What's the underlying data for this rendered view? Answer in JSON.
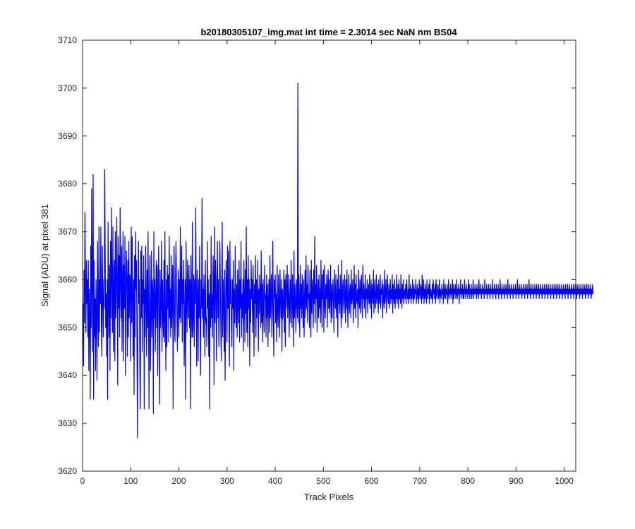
{
  "colors": {
    "line": "#0000ff",
    "axes": "#262626",
    "background": "#ffffff"
  },
  "chart_data": {
    "type": "line",
    "title": "b20180305107_img.mat int time = 2.3014 sec  NaN nm BS04",
    "xlabel": "Track Pixels",
    "ylabel": "Signal (ADU) at pixel 381",
    "xlim": [
      0,
      1024
    ],
    "ylim": [
      3620,
      3710
    ],
    "xticks": [
      0,
      100,
      200,
      300,
      400,
      500,
      600,
      700,
      800,
      900,
      1000
    ],
    "yticks": [
      3620,
      3630,
      3640,
      3650,
      3660,
      3670,
      3680,
      3690,
      3700,
      3710
    ],
    "grid": false,
    "legend": "none",
    "series": [
      {
        "color": "#0000ff",
        "x_start": 1,
        "x_step": 1,
        "values": [
          3655,
          3642,
          3662,
          3651,
          3674,
          3658,
          3649,
          3664,
          3655,
          3660,
          3648,
          3664,
          3641,
          3658,
          3652,
          3635,
          3667,
          3650,
          3679,
          3660,
          3645,
          3682,
          3635,
          3664,
          3648,
          3656,
          3641,
          3660,
          3652,
          3639,
          3668,
          3655,
          3646,
          3671,
          3649,
          3660,
          3655,
          3671,
          3651,
          3644,
          3667,
          3656,
          3648,
          3660,
          3654,
          3683,
          3666,
          3650,
          3657,
          3644,
          3660,
          3635,
          3672,
          3655,
          3648,
          3663,
          3641,
          3668,
          3652,
          3675,
          3660,
          3649,
          3671,
          3645,
          3658,
          3664,
          3643,
          3670,
          3652,
          3656,
          3673,
          3660,
          3638,
          3669,
          3654,
          3665,
          3648,
          3675,
          3660,
          3652,
          3667,
          3645,
          3659,
          3670,
          3643,
          3663,
          3654,
          3669,
          3640,
          3657,
          3666,
          3660,
          3644,
          3664,
          3648,
          3668,
          3652,
          3661,
          3660,
          3643,
          3671,
          3651,
          3669,
          3657,
          3644,
          3660,
          3636,
          3665,
          3648,
          3670,
          3658,
          3664,
          3645,
          3627,
          3652,
          3668,
          3655,
          3660,
          3640,
          3633,
          3666,
          3652,
          3667,
          3645,
          3660,
          3655,
          3665,
          3633,
          3658,
          3648,
          3667,
          3657,
          3644,
          3662,
          3650,
          3670,
          3652,
          3633,
          3659,
          3665,
          3641,
          3652,
          3666,
          3648,
          3660,
          3657,
          3632,
          3670,
          3652,
          3660,
          3645,
          3657,
          3664,
          3650,
          3663,
          3640,
          3658,
          3667,
          3652,
          3634,
          3662,
          3650,
          3656,
          3668,
          3645,
          3660,
          3652,
          3648,
          3664,
          3647,
          3670,
          3652,
          3641,
          3660,
          3646,
          3663,
          3654,
          3661,
          3647,
          3669,
          3652,
          3658,
          3648,
          3665,
          3650,
          3655,
          3663,
          3633,
          3658,
          3667,
          3651,
          3647,
          3660,
          3668,
          3660,
          3652,
          3645,
          3657,
          3662,
          3648,
          3660,
          3652,
          3671,
          3651,
          3658,
          3667,
          3647,
          3660,
          3655,
          3664,
          3642,
          3652,
          3660,
          3635,
          3668,
          3655,
          3649,
          3664,
          3658,
          3652,
          3663,
          3650,
          3660,
          3633,
          3665,
          3656,
          3648,
          3672,
          3648,
          3652,
          3661,
          3646,
          3660,
          3655,
          3675,
          3658,
          3642,
          3662,
          3657,
          3643,
          3660,
          3652,
          3667,
          3652,
          3640,
          3660,
          3654,
          3677,
          3652,
          3658,
          3648,
          3661,
          3656,
          3644,
          3664,
          3651,
          3652,
          3646,
          3668,
          3654,
          3660,
          3644,
          3657,
          3633,
          3661,
          3650,
          3669,
          3652,
          3657,
          3648,
          3665,
          3660,
          3638,
          3671,
          3651,
          3664,
          3660,
          3643,
          3657,
          3668,
          3652,
          3660,
          3646,
          3654,
          3668,
          3660,
          3650,
          3643,
          3657,
          3672,
          3648,
          3660,
          3656,
          3645,
          3662,
          3639,
          3651,
          3664,
          3659,
          3647,
          3667,
          3654,
          3666,
          3652,
          3642,
          3668,
          3655,
          3660,
          3651,
          3646,
          3660,
          3654,
          3664,
          3641,
          3658,
          3651,
          3667,
          3655,
          3650,
          3659,
          3648,
          3662,
          3656,
          3651,
          3664,
          3647,
          3660,
          3654,
          3668,
          3648,
          3657,
          3652,
          3660,
          3645,
          3664,
          3657,
          3647,
          3662,
          3653,
          3671,
          3649,
          3660,
          3646,
          3665,
          3654,
          3660,
          3642,
          3658,
          3651,
          3664,
          3656,
          3660,
          3649,
          3663,
          3656,
          3644,
          3659,
          3655,
          3665,
          3648,
          3660,
          3652,
          3656,
          3664,
          3645,
          3658,
          3653,
          3661,
          3657,
          3650,
          3666,
          3651,
          3659,
          3647,
          3660,
          3654,
          3649,
          3663,
          3656,
          3657,
          3648,
          3661,
          3652,
          3659,
          3646,
          3656,
          3660,
          3649,
          3665,
          3652,
          3658,
          3661,
          3648,
          3655,
          3668,
          3652,
          3644,
          3660,
          3656,
          3661,
          3651,
          3657,
          3647,
          3663,
          3653,
          3650,
          3661,
          3655,
          3648,
          3662,
          3656,
          3652,
          3660,
          3645,
          3658,
          3652,
          3655,
          3662,
          3649,
          3660,
          3646,
          3661,
          3654,
          3658,
          3663,
          3652,
          3656,
          3661,
          3648,
          3655,
          3660,
          3651,
          3664,
          3657,
          3650,
          3661,
          3655,
          3646,
          3666,
          3652,
          3659,
          3655,
          3649,
          3660,
          3656,
          3652,
          3701,
          3651,
          3661,
          3656,
          3648,
          3663,
          3654,
          3659,
          3652,
          3661,
          3655,
          3650,
          3660,
          3648,
          3657,
          3662,
          3652,
          3665,
          3654,
          3659,
          3651,
          3663,
          3656,
          3657,
          3650,
          3662,
          3655,
          3648,
          3664,
          3653,
          3660,
          3658,
          3650,
          3662,
          3655,
          3669,
          3651,
          3659,
          3656,
          3663,
          3649,
          3657,
          3660,
          3652,
          3661,
          3654,
          3658,
          3651,
          3664,
          3657,
          3650,
          3661,
          3656,
          3662,
          3649,
          3663,
          3655,
          3652,
          3659,
          3656,
          3661,
          3650,
          3658,
          3662,
          3654,
          3660,
          3653,
          3656,
          3663,
          3651,
          3659,
          3652,
          3657,
          3660,
          3655,
          3649,
          3662,
          3658,
          3654,
          3661,
          3652,
          3656,
          3660,
          3648,
          3663,
          3655,
          3658,
          3653,
          3661,
          3656,
          3650,
          3664,
          3652,
          3658,
          3660,
          3655,
          3653,
          3661,
          3657,
          3651,
          3660,
          3654,
          3662,
          3656,
          3650,
          3658,
          3661,
          3653,
          3657,
          3659,
          3652,
          3662,
          3655,
          3657,
          3660,
          3651,
          3656,
          3663,
          3654,
          3659,
          3652,
          3661,
          3656,
          3655,
          3658,
          3650,
          3662,
          3657,
          3654,
          3660,
          3653,
          3658,
          3661,
          3655,
          3652,
          3663,
          3656,
          3659,
          3654,
          3657,
          3661,
          3652,
          3658,
          3656,
          3660,
          3653,
          3657,
          3659,
          3655,
          3661,
          3654,
          3656,
          3660,
          3652,
          3659,
          3657,
          3655,
          3662,
          3653,
          3658,
          3660,
          3654,
          3656,
          3661,
          3655,
          3657,
          3659,
          3653,
          3660,
          3656,
          3655,
          3661,
          3654,
          3658,
          3657,
          3660,
          3652,
          3659,
          3656,
          3654,
          3662,
          3655,
          3657,
          3660,
          3653,
          3658,
          3661,
          3656,
          3655,
          3659,
          3654,
          3657,
          3660,
          3655,
          3658,
          3656,
          3661,
          3653,
          3659,
          3657,
          3655,
          3660,
          3654,
          3658,
          3656,
          3661,
          3655,
          3657,
          3659,
          3654,
          3660,
          3656,
          3658,
          3655,
          3661,
          3657,
          3654,
          3659,
          3656,
          3660,
          3655,
          3657,
          3658,
          3656,
          3659,
          3655,
          3660,
          3657,
          3656,
          3658,
          3655,
          3661,
          3656,
          3657,
          3659,
          3655,
          3658,
          3656,
          3660,
          3657,
          3655,
          3659,
          3656,
          3658,
          3657,
          3660,
          3655,
          3657,
          3659,
          3656,
          3658,
          3655,
          3660,
          3657,
          3656,
          3659,
          3658,
          3655,
          3661,
          3656,
          3657,
          3660,
          3655,
          3658,
          3656,
          3659,
          3657,
          3655,
          3660,
          3656,
          3658,
          3657,
          3659,
          3655,
          3660,
          3656,
          3658,
          3657,
          3656,
          3659,
          3655,
          3660,
          3657,
          3658,
          3656,
          3659,
          3655,
          3660,
          3657,
          3656,
          3658,
          3659,
          3656,
          3657,
          3660,
          3655,
          3658,
          3657,
          3656,
          3659,
          3657,
          3658,
          3655,
          3660,
          3656,
          3657,
          3659,
          3656,
          3658,
          3657,
          3659,
          3655,
          3657,
          3660,
          3656,
          3658,
          3657,
          3659,
          3656,
          3658,
          3657,
          3660,
          3655,
          3659,
          3656,
          3658,
          3657,
          3659,
          3656,
          3657,
          3660,
          3656,
          3658,
          3657,
          3659,
          3655,
          3658,
          3657,
          3660,
          3656,
          3658,
          3657,
          3659,
          3656,
          3658,
          3656,
          3660,
          3657,
          3658,
          3656,
          3659,
          3657,
          3658,
          3656,
          3660,
          3657,
          3659,
          3656,
          3658,
          3657,
          3659,
          3656,
          3658,
          3657,
          3660,
          3656,
          3658,
          3657,
          3659,
          3657,
          3658,
          3656,
          3659,
          3657,
          3658,
          3656,
          3660,
          3657,
          3658,
          3657,
          3659,
          3656,
          3658,
          3657,
          3659,
          3657,
          3658,
          3656,
          3660,
          3657,
          3658,
          3657,
          3659,
          3656,
          3658,
          3657,
          3659,
          3657,
          3658,
          3656,
          3659,
          3657,
          3658,
          3657,
          3660,
          3656,
          3658,
          3657,
          3659,
          3657,
          3658,
          3656,
          3659,
          3657,
          3658,
          3657,
          3659,
          3656,
          3658,
          3657,
          3660,
          3657,
          3658,
          3656,
          3659,
          3657,
          3658,
          3657,
          3659,
          3656,
          3658,
          3657,
          3659,
          3657,
          3658,
          3656,
          3660,
          3657,
          3658,
          3657,
          3659,
          3656,
          3658,
          3657,
          3659,
          3657,
          3658,
          3656,
          3659,
          3657,
          3658,
          3657,
          3659,
          3656,
          3658,
          3657,
          3660,
          3657,
          3658,
          3656,
          3659,
          3657,
          3658,
          3657,
          3659,
          3656,
          3658,
          3657,
          3659,
          3657,
          3658,
          3656,
          3659,
          3657,
          3658,
          3657,
          3659,
          3656,
          3658,
          3657,
          3660,
          3657,
          3658,
          3656,
          3659,
          3657,
          3658,
          3657,
          3659,
          3656,
          3658,
          3657,
          3659,
          3657,
          3658,
          3656,
          3659,
          3657,
          3658,
          3657,
          3659,
          3656,
          3658,
          3657,
          3659,
          3657,
          3658,
          3656,
          3659,
          3657,
          3658,
          3657,
          3659,
          3656,
          3658,
          3657,
          3659,
          3657,
          3658,
          3656,
          3659,
          3657,
          3658,
          3657,
          3659,
          3656,
          3658,
          3657,
          3659,
          3657,
          3658,
          3656,
          3659,
          3657,
          3658,
          3657,
          3659,
          3656,
          3658,
          3657,
          3659,
          3657,
          3658,
          3656,
          3659,
          3657,
          3658,
          3657,
          3659,
          3656,
          3658,
          3657,
          3659,
          3657,
          3658,
          3656,
          3659,
          3657,
          3658,
          3657,
          3659,
          3656,
          3658,
          3657,
          3659,
          3657,
          3658,
          3656,
          3659,
          3657,
          3658,
          3657,
          3659,
          3656,
          3658,
          3657,
          3659,
          3657,
          3658,
          3656,
          3659,
          3657,
          3658,
          3657,
          3659,
          3656,
          3658,
          3657,
          3659,
          3657,
          3658,
          3656,
          3659,
          3657,
          3658,
          3657,
          3659,
          3656,
          3658,
          3657,
          3659,
          3657,
          3658,
          3656,
          3659,
          3657,
          3658,
          3657,
          3659,
          3656,
          3658,
          3657,
          3659,
          3657
        ]
      }
    ]
  }
}
